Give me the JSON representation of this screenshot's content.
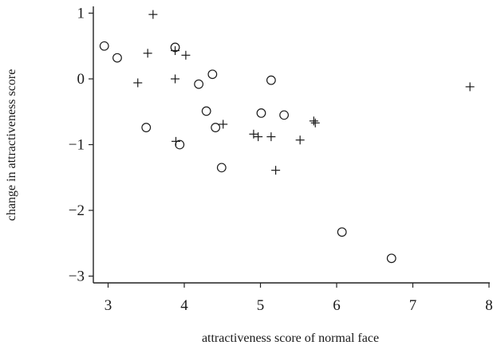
{
  "chart_data": {
    "type": "scatter",
    "xlabel": "attractiveness score of normal face",
    "ylabel": "change in attractiveness score",
    "xlim": [
      2.7,
      8.15
    ],
    "ylim": [
      -3.05,
      1.08
    ],
    "x_ticks": [
      3,
      4,
      5,
      6,
      7,
      8
    ],
    "y_ticks": [
      1,
      0,
      -1,
      -2,
      -3
    ],
    "y_tick_labels": [
      "1",
      "0",
      "−1",
      "−2",
      "−3"
    ],
    "grid": false,
    "legend": "none",
    "series": [
      {
        "marker": "circle",
        "points": [
          {
            "x": 2.95,
            "y": 0.5
          },
          {
            "x": 3.12,
            "y": 0.32
          },
          {
            "x": 3.5,
            "y": -0.74
          },
          {
            "x": 3.88,
            "y": 0.48
          },
          {
            "x": 3.94,
            "y": -1.0
          },
          {
            "x": 4.19,
            "y": -0.08
          },
          {
            "x": 4.29,
            "y": -0.49
          },
          {
            "x": 4.37,
            "y": 0.07
          },
          {
            "x": 4.41,
            "y": -0.74
          },
          {
            "x": 4.49,
            "y": -1.35
          },
          {
            "x": 5.01,
            "y": -0.52
          },
          {
            "x": 5.14,
            "y": -0.02
          },
          {
            "x": 5.31,
            "y": -0.55
          },
          {
            "x": 6.07,
            "y": -2.33
          },
          {
            "x": 6.72,
            "y": -2.73
          }
        ]
      },
      {
        "marker": "plus",
        "points": [
          {
            "x": 3.39,
            "y": -0.06
          },
          {
            "x": 3.52,
            "y": 0.39
          },
          {
            "x": 3.59,
            "y": 0.98
          },
          {
            "x": 3.88,
            "y": 0.43
          },
          {
            "x": 3.88,
            "y": 0.0
          },
          {
            "x": 3.89,
            "y": -0.95
          },
          {
            "x": 4.02,
            "y": 0.36
          },
          {
            "x": 4.51,
            "y": -0.69
          },
          {
            "x": 4.91,
            "y": -0.84
          },
          {
            "x": 4.97,
            "y": -0.88
          },
          {
            "x": 5.14,
            "y": -0.88
          },
          {
            "x": 5.2,
            "y": -1.39
          },
          {
            "x": 5.52,
            "y": -0.93
          },
          {
            "x": 5.7,
            "y": -0.64
          },
          {
            "x": 5.72,
            "y": -0.67
          },
          {
            "x": 7.75,
            "y": -0.12
          }
        ]
      }
    ]
  }
}
